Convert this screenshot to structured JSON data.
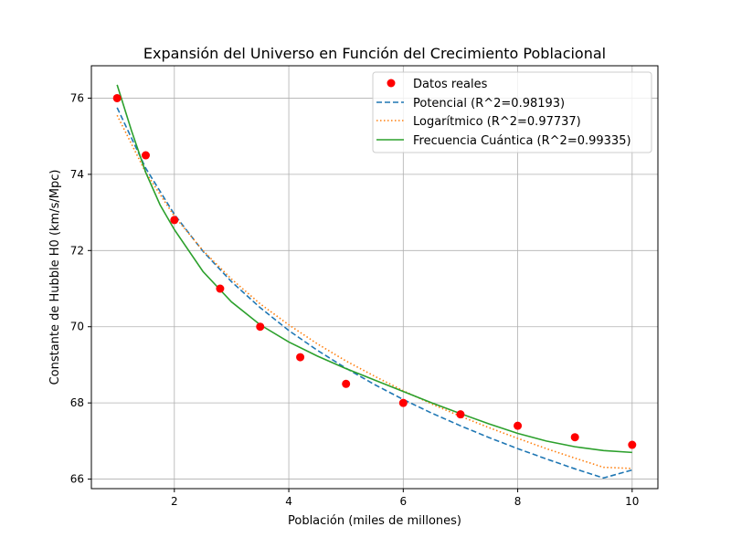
{
  "chart_data": {
    "type": "scatter",
    "title": "Expansión del Universo en Función del Crecimiento Poblacional",
    "xlabel": "Población (miles de millones)",
    "ylabel": "Constante de Hubble H0 (km/s/Mpc)",
    "xlim": [
      0.55,
      10.45
    ],
    "ylim": [
      65.75,
      76.85
    ],
    "xticks": [
      2,
      4,
      6,
      8,
      10
    ],
    "yticks": [
      66,
      68,
      70,
      72,
      74,
      76
    ],
    "grid": true,
    "legend_position": "top-right",
    "scatter": {
      "name": "Datos reales",
      "color": "#ff0000",
      "x": [
        1,
        1.5,
        2,
        2.8,
        3.5,
        4.2,
        5,
        6,
        7,
        8,
        9,
        10
      ],
      "y": [
        76.0,
        74.5,
        72.8,
        71.0,
        70.0,
        69.2,
        68.5,
        68.0,
        67.7,
        67.4,
        67.1,
        66.9
      ]
    },
    "series": [
      {
        "name": "Potencial (R^2=0.98193)",
        "color": "#1f77b4",
        "style": "dashed",
        "x": [
          1,
          1.5,
          2,
          2.5,
          3,
          3.5,
          4,
          4.5,
          5,
          5.5,
          6,
          6.5,
          7,
          7.5,
          8,
          8.5,
          9,
          9.5,
          10
        ],
        "y": [
          75.75,
          74.16,
          72.95,
          71.98,
          71.18,
          70.5,
          69.9,
          69.38,
          68.91,
          68.48,
          68.09,
          67.73,
          67.4,
          67.09,
          66.8,
          66.53,
          66.27,
          66.03,
          66.24
        ]
      },
      {
        "name": "Logarítmico (R^2=0.97737)",
        "color": "#ff7f0e",
        "style": "dotted",
        "x": [
          1,
          1.5,
          2,
          2.5,
          3,
          3.5,
          4,
          4.5,
          5,
          5.5,
          6,
          6.5,
          7,
          7.5,
          8,
          8.5,
          9,
          9.5,
          10
        ],
        "y": [
          75.55,
          74.05,
          72.9,
          72.0,
          71.25,
          70.6,
          70.05,
          69.55,
          69.1,
          68.7,
          68.32,
          67.97,
          67.65,
          67.35,
          67.07,
          66.8,
          66.55,
          66.31,
          66.28
        ]
      },
      {
        "name": "Frecuencia Cuántica (R^2=0.99335)",
        "color": "#2ca02c",
        "style": "solid",
        "x": [
          1,
          1.25,
          1.5,
          1.75,
          2,
          2.5,
          3,
          3.5,
          4,
          4.5,
          5,
          5.5,
          6,
          6.5,
          7,
          7.5,
          8,
          8.5,
          9,
          9.5,
          10
        ],
        "y": [
          76.35,
          75.15,
          74.05,
          73.2,
          72.55,
          71.45,
          70.65,
          70.05,
          69.6,
          69.23,
          68.9,
          68.6,
          68.3,
          68.0,
          67.72,
          67.45,
          67.2,
          67.0,
          66.85,
          66.75,
          66.7
        ]
      }
    ]
  }
}
